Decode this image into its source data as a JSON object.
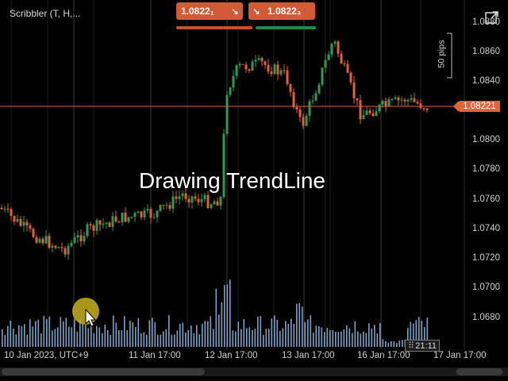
{
  "header": {
    "symbol_label": "Scribbler (T, H,...",
    "sell": {
      "price": "1.0822₁",
      "icon": "arrow-down-right-icon"
    },
    "buy": {
      "price": "1.0822₃",
      "icon": "arrow-down-right-icon"
    }
  },
  "overlay_text": "Drawing TrendLine",
  "current_price_tag": "1.08221",
  "pips_label": "50 pips",
  "price_axis": [
    "1.0880",
    "1.0860",
    "1.0840",
    "1.0800",
    "1.0780",
    "1.0760",
    "1.0740",
    "1.0720",
    "1.0700",
    "1.0680"
  ],
  "time_axis": [
    "10 Jan 2023, UTC+9",
    "11 Jan 17:00",
    "12 Jan 17:00",
    "13 Jan 17:00",
    "16 Jan 17:00",
    "17 Jan 17:00"
  ],
  "crosshair_time": "21:11",
  "colors": {
    "bull": "#2f9a56",
    "bear": "#e0603a",
    "volume": "#8fbde6",
    "price_line": "#e0633a"
  }
}
